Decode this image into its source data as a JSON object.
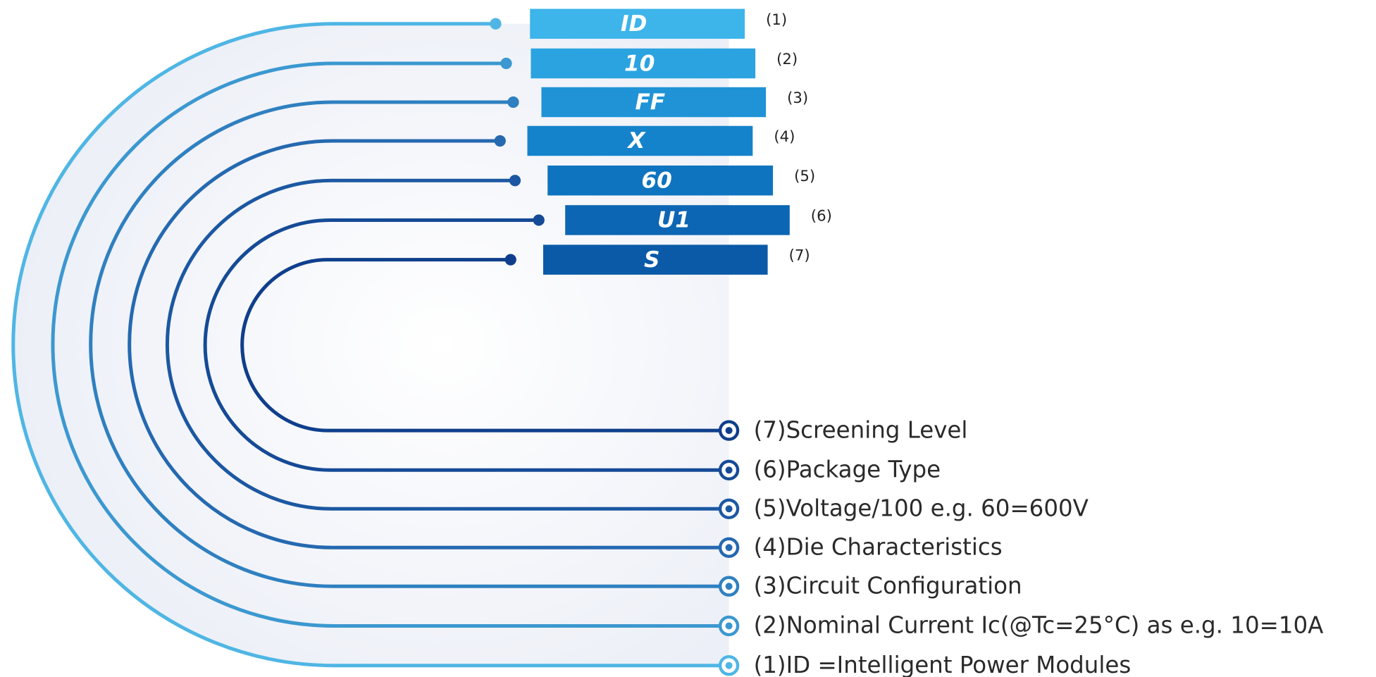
{
  "items": [
    {
      "code": "ID",
      "index": "(1)",
      "description": "(1)ID =Intelligent Power Modules"
    },
    {
      "code": "10",
      "index": "(2)",
      "description": "(2)Nominal Current Ic(@Tc=25°C) as e.g. 10=10A"
    },
    {
      "code": "FF",
      "index": "(3)",
      "description": "(3)Circuit Configuration"
    },
    {
      "code": "X",
      "index": "(4)",
      "description": "(4)Die Characteristics"
    },
    {
      "code": "60",
      "index": "(5)",
      "description": "(5)Voltage/100 e.g. 60=600V"
    },
    {
      "code": "U1",
      "index": "(6)",
      "description": "(6)Package Type"
    },
    {
      "code": "S",
      "index": "(7)",
      "description": "(7)Screening Level"
    }
  ]
}
